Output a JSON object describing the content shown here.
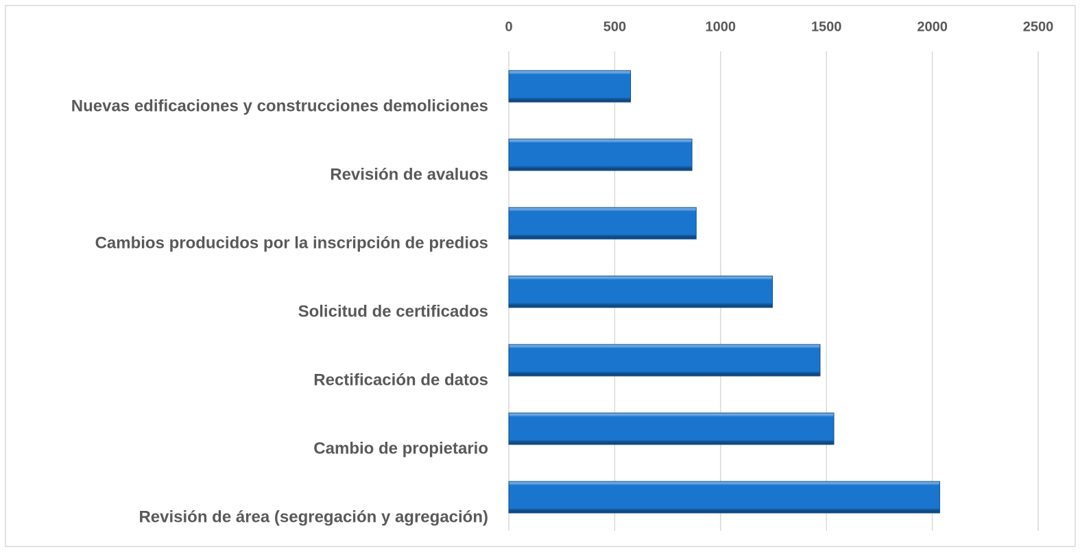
{
  "chart_data": {
    "type": "bar",
    "orientation": "horizontal",
    "categories": [
      "Nuevas edificaciones y construcciones demoliciones",
      "Revisión de avaluos",
      "Cambios producidos por la inscripción de predios",
      "Solicitud de certificados",
      "Rectificación de datos",
      "Cambio de propietario",
      "Revisión de área (segregación y agregación)"
    ],
    "values": [
      575,
      865,
      885,
      1245,
      1470,
      1535,
      2035
    ],
    "color": "#1a75cf",
    "xlim": [
      0,
      2500
    ],
    "xticks": [
      0,
      500,
      1000,
      1500,
      2000,
      2500
    ],
    "grid": true
  }
}
